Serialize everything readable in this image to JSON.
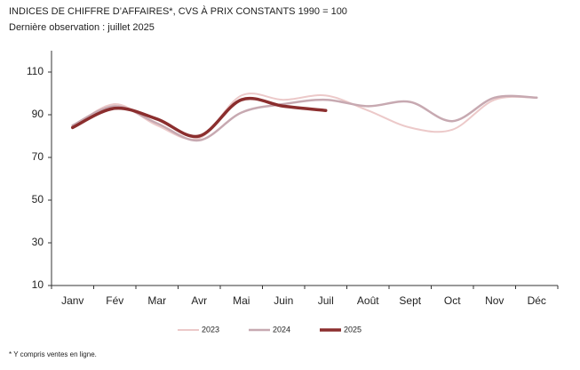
{
  "chart_data": {
    "type": "line",
    "title": "INDICES DE CHIFFRE D’AFFAIRES*, CVS À PRIX CONSTANTS 1990 = 100",
    "subtitle": "Dernière observation : juillet 2025",
    "footnote": "* Y compris ventes en ligne.",
    "categories": [
      "Janv",
      "Fév",
      "Mar",
      "Avr",
      "Mai",
      "Juin",
      "Juil",
      "Août",
      "Sept",
      "Oct",
      "Nov",
      "Déc"
    ],
    "series": [
      {
        "name": "2023",
        "color": "#ecc9c9",
        "values": [
          84,
          95,
          85,
          79,
          99,
          97,
          99,
          92,
          84,
          83,
          97,
          98
        ]
      },
      {
        "name": "2024",
        "color": "#c7a9b1",
        "values": [
          85,
          94,
          86,
          78,
          91,
          95,
          97,
          94,
          96,
          87,
          98,
          98
        ]
      },
      {
        "name": "2025",
        "color": "#8b2e2e",
        "values": [
          84,
          93,
          88,
          80,
          97,
          94,
          92,
          null,
          null,
          null,
          null,
          null
        ]
      }
    ],
    "ylim": [
      10,
      120
    ],
    "yticks": [
      10,
      30,
      50,
      70,
      90,
      110
    ],
    "grid": false
  }
}
